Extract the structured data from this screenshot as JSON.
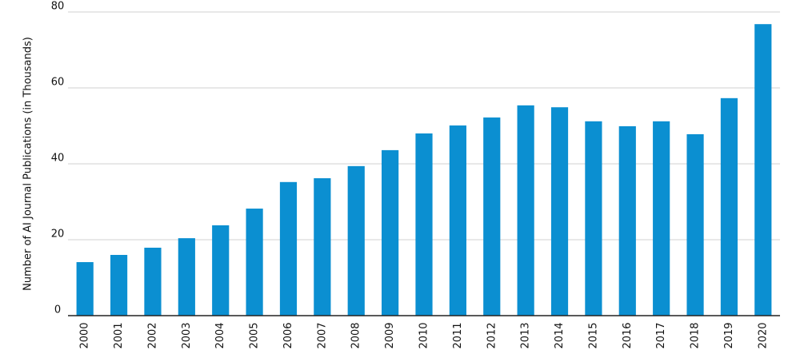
{
  "chart_data": {
    "type": "bar",
    "y_label": "Number of AI Journal Publications (in Thousands)",
    "categories": [
      "2000",
      "2001",
      "2002",
      "2003",
      "2004",
      "2005",
      "2006",
      "2007",
      "2008",
      "2009",
      "2010",
      "2011",
      "2012",
      "2013",
      "2014",
      "2015",
      "2016",
      "2017",
      "2018",
      "2019",
      "2020"
    ],
    "values": [
      14.1,
      16.0,
      17.9,
      20.4,
      23.8,
      28.2,
      35.2,
      36.2,
      39.4,
      43.6,
      48.0,
      50.1,
      52.2,
      55.4,
      54.9,
      51.2,
      49.9,
      51.2,
      47.8,
      57.3,
      76.8
    ],
    "color": "#0b8fd1",
    "ylim": [
      0,
      80
    ],
    "yticks": [
      0,
      20,
      40,
      60,
      80
    ],
    "grid": true
  }
}
